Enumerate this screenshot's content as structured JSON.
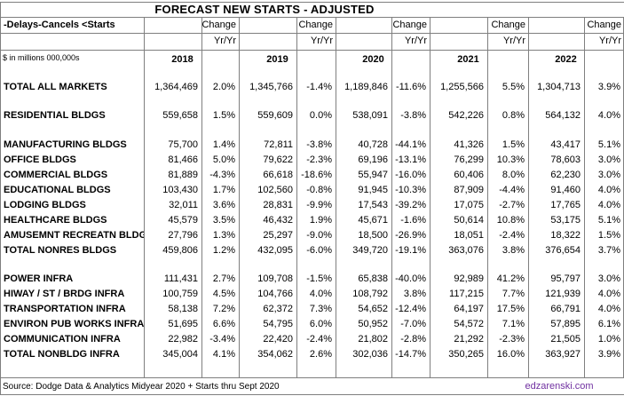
{
  "title": "FORECAST NEW STARTS - ADJUSTED",
  "subtitle": "-Delays-Cancels <Starts",
  "units": "$ in millions 000,000s",
  "change_label": "Change",
  "yryr_label": "Yr/Yr",
  "years": [
    "2018",
    "2019",
    "2020",
    "2021",
    "2022"
  ],
  "rows": [
    {
      "label": "TOTAL ALL MARKETS",
      "vals": [
        "1,364,469",
        "1,345,766",
        "1,189,846",
        "1,255,566",
        "1,304,713"
      ],
      "chg": [
        "2.0%",
        "-1.4%",
        "-11.6%",
        "5.5%",
        "3.9%"
      ]
    },
    {
      "label": "RESIDENTIAL BLDGS",
      "vals": [
        "559,658",
        "559,609",
        "538,091",
        "542,226",
        "564,132"
      ],
      "chg": [
        "1.5%",
        "0.0%",
        "-3.8%",
        "0.8%",
        "4.0%"
      ]
    },
    {
      "label": "MANUFACTURING BLDGS",
      "vals": [
        "75,700",
        "72,811",
        "40,728",
        "41,326",
        "43,417"
      ],
      "chg": [
        "1.4%",
        "-3.8%",
        "-44.1%",
        "1.5%",
        "5.1%"
      ]
    },
    {
      "label": "OFFICE BLDGS",
      "vals": [
        "81,466",
        "79,622",
        "69,196",
        "76,299",
        "78,603"
      ],
      "chg": [
        "5.0%",
        "-2.3%",
        "-13.1%",
        "10.3%",
        "3.0%"
      ]
    },
    {
      "label": "COMMERCIAL BLDGS",
      "vals": [
        "81,889",
        "66,618",
        "55,947",
        "60,406",
        "62,230"
      ],
      "chg": [
        "-4.3%",
        "-18.6%",
        "-16.0%",
        "8.0%",
        "3.0%"
      ]
    },
    {
      "label": "EDUCATIONAL BLDGS",
      "vals": [
        "103,430",
        "102,560",
        "91,945",
        "87,909",
        "91,460"
      ],
      "chg": [
        "1.7%",
        "-0.8%",
        "-10.3%",
        "-4.4%",
        "4.0%"
      ]
    },
    {
      "label": "LODGING BLDGS",
      "vals": [
        "32,011",
        "28,831",
        "17,543",
        "17,075",
        "17,765"
      ],
      "chg": [
        "3.6%",
        "-9.9%",
        "-39.2%",
        "-2.7%",
        "4.0%"
      ]
    },
    {
      "label": "HEALTHCARE BLDGS",
      "vals": [
        "45,579",
        "46,432",
        "45,671",
        "50,614",
        "53,175"
      ],
      "chg": [
        "3.5%",
        "1.9%",
        "-1.6%",
        "10.8%",
        "5.1%"
      ]
    },
    {
      "label": "AMUSEMNT RECREATN BLDG",
      "vals": [
        "27,796",
        "25,297",
        "18,500",
        "18,051",
        "18,322"
      ],
      "chg": [
        "1.3%",
        "-9.0%",
        "-26.9%",
        "-2.4%",
        "1.5%"
      ]
    },
    {
      "label": "TOTAL NONRES BLDGS",
      "vals": [
        "459,806",
        "432,095",
        "349,720",
        "363,076",
        "376,654"
      ],
      "chg": [
        "1.2%",
        "-6.0%",
        "-19.1%",
        "3.8%",
        "3.7%"
      ]
    },
    {
      "label": "POWER INFRA",
      "vals": [
        "111,431",
        "109,708",
        "65,838",
        "92,989",
        "95,797"
      ],
      "chg": [
        "2.7%",
        "-1.5%",
        "-40.0%",
        "41.2%",
        "3.0%"
      ]
    },
    {
      "label": "HIWAY / ST / BRDG INFRA",
      "vals": [
        "100,759",
        "104,766",
        "108,792",
        "117,215",
        "121,939"
      ],
      "chg": [
        "4.5%",
        "4.0%",
        "3.8%",
        "7.7%",
        "4.0%"
      ]
    },
    {
      "label": "TRANSPORTATION INFRA",
      "vals": [
        "58,138",
        "62,372",
        "54,652",
        "64,197",
        "66,791"
      ],
      "chg": [
        "7.2%",
        "7.3%",
        "-12.4%",
        "17.5%",
        "4.0%"
      ]
    },
    {
      "label": "ENVIRON PUB WORKS INFRA",
      "vals": [
        "51,695",
        "54,795",
        "50,952",
        "54,572",
        "57,895"
      ],
      "chg": [
        "6.6%",
        "6.0%",
        "-7.0%",
        "7.1%",
        "6.1%"
      ]
    },
    {
      "label": "COMMUNICATION INFRA",
      "vals": [
        "22,982",
        "22,420",
        "21,802",
        "21,292",
        "21,505"
      ],
      "chg": [
        "-3.4%",
        "-2.4%",
        "-2.8%",
        "-2.3%",
        "1.0%"
      ]
    },
    {
      "label": "TOTAL NONBLDG INFRA",
      "vals": [
        "345,004",
        "354,062",
        "302,036",
        "350,265",
        "363,927"
      ],
      "chg": [
        "4.1%",
        "2.6%",
        "-14.7%",
        "16.0%",
        "3.9%"
      ]
    }
  ],
  "footer": {
    "source": "Source: Dodge Data & Analytics Midyear 2020 + Starts thru Sept 2020",
    "credit": "edzarenski.com",
    "credit_color": "#7030a0"
  }
}
